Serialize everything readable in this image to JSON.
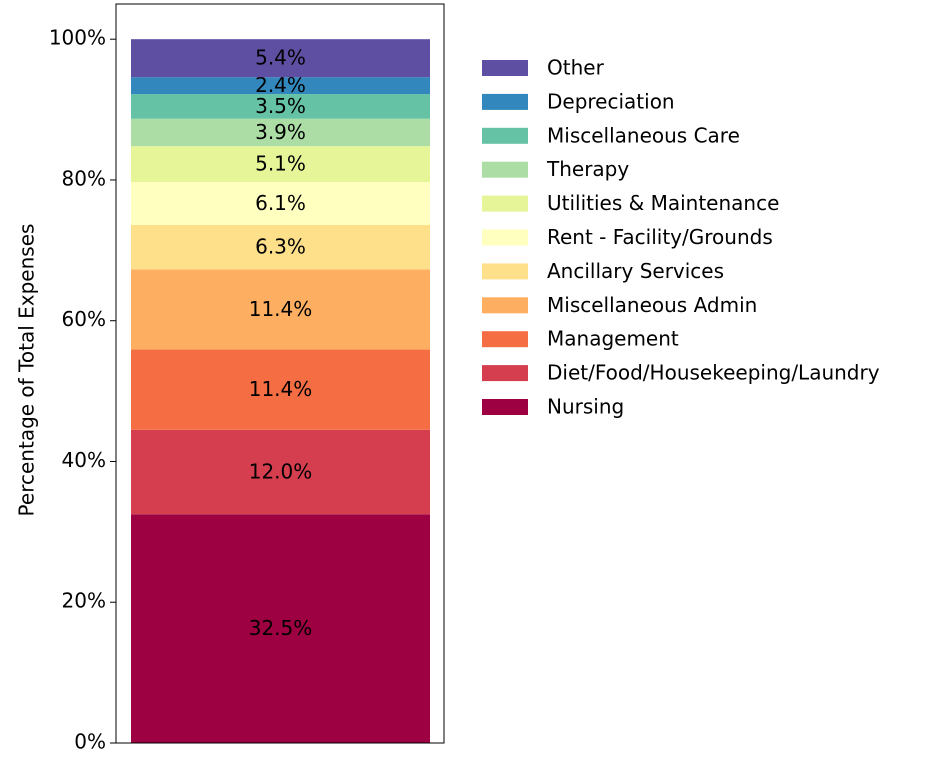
{
  "chart_data": {
    "type": "stacked-bar",
    "y_label": "Percentage of Total Expenses",
    "ylim": [
      0,
      105
    ],
    "yticks": [
      {
        "value": 0,
        "label": "0%"
      },
      {
        "value": 20,
        "label": "20%"
      },
      {
        "value": 40,
        "label": "40%"
      },
      {
        "value": 60,
        "label": "60%"
      },
      {
        "value": 80,
        "label": "80%"
      },
      {
        "value": 100,
        "label": "100%"
      }
    ],
    "legend": "right",
    "series": [
      {
        "name": "Nursing",
        "color": "#9e0142",
        "values": [
          32.5
        ],
        "value_labels": [
          "32.5%"
        ]
      },
      {
        "name": "Diet/Food/Housekeeping/Laundry",
        "color": "#d53e4f",
        "values": [
          12.0
        ],
        "value_labels": [
          "12.0%"
        ]
      },
      {
        "name": "Management",
        "color": "#f46d43",
        "values": [
          11.4
        ],
        "value_labels": [
          "11.4%"
        ]
      },
      {
        "name": "Miscellaneous Admin",
        "color": "#fdae61",
        "values": [
          11.4
        ],
        "value_labels": [
          "11.4%"
        ]
      },
      {
        "name": "Ancillary Services",
        "color": "#fee08b",
        "values": [
          6.3
        ],
        "value_labels": [
          "6.3%"
        ]
      },
      {
        "name": "Rent - Facility/Grounds",
        "color": "#ffffbf",
        "values": [
          6.1
        ],
        "value_labels": [
          "6.1%"
        ]
      },
      {
        "name": "Utilities & Maintenance",
        "color": "#e6f598",
        "values": [
          5.1
        ],
        "value_labels": [
          "5.1%"
        ]
      },
      {
        "name": "Therapy",
        "color": "#abdda4",
        "values": [
          3.9
        ],
        "value_labels": [
          "3.9%"
        ]
      },
      {
        "name": "Miscellaneous Care",
        "color": "#66c2a5",
        "values": [
          3.5
        ],
        "value_labels": [
          "3.5%"
        ]
      },
      {
        "name": "Depreciation",
        "color": "#3288bd",
        "values": [
          2.4
        ],
        "value_labels": [
          "2.4%"
        ]
      },
      {
        "name": "Other",
        "color": "#5e4fa2",
        "values": [
          5.4
        ],
        "value_labels": [
          "5.4%"
        ]
      }
    ]
  }
}
